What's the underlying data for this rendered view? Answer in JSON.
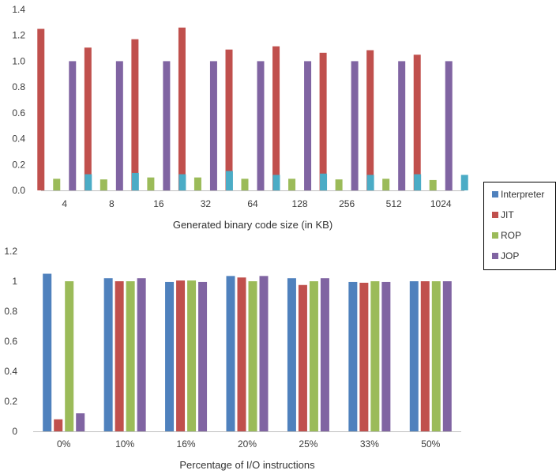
{
  "colors": {
    "Interpreter": "#4f81bd",
    "JIT": "#c0504d",
    "ROP": "#9bbb59",
    "JOP": "#8064a2",
    "extra": "#4bacc6"
  },
  "legend": {
    "placement": "right",
    "items": [
      {
        "label": "Interpreter",
        "color": "#4f81bd"
      },
      {
        "label": "JIT",
        "color": "#c0504d"
      },
      {
        "label": "ROP",
        "color": "#9bbb59"
      },
      {
        "label": "JOP",
        "color": "#8064a2"
      }
    ]
  },
  "chart_data": [
    {
      "type": "bar",
      "title": "",
      "xlabel": "Generated binary code size (in KB)",
      "ylabel": "",
      "categories": [
        "4",
        "8",
        "16",
        "32",
        "64",
        "128",
        "256",
        "512",
        "1024"
      ],
      "ylim": [
        0,
        1.4
      ],
      "yticks": [
        0,
        0.2,
        0.4,
        0.6,
        0.8,
        1.0,
        1.2,
        1.4
      ],
      "ytick_labels": [
        "0.0",
        "0.2",
        "0.4",
        "0.6",
        "0.8",
        "1.0",
        "1.2",
        "1.4"
      ],
      "grid": false,
      "series": [
        {
          "name": "JIT",
          "color": "#c0504d",
          "values": [
            1.25,
            1.105,
            1.17,
            1.26,
            1.09,
            1.115,
            1.065,
            1.085,
            1.05
          ]
        },
        {
          "color": "#9bbb59",
          "values": [
            0.09,
            0.085,
            0.1,
            0.1,
            0.09,
            0.09,
            0.085,
            0.09,
            0.08
          ]
        },
        {
          "name": "JOP",
          "color": "#8064a2",
          "values": [
            1.0,
            1.0,
            1.0,
            1.0,
            1.0,
            1.0,
            1.0,
            1.0,
            1.0
          ]
        },
        {
          "color": "#4bacc6",
          "values": [
            0.125,
            0.135,
            0.125,
            0.15,
            0.12,
            0.13,
            0.12,
            0.125,
            0.12
          ]
        }
      ]
    },
    {
      "type": "bar",
      "title": "",
      "xlabel": "Percentage of I/O instructions",
      "ylabel": "",
      "categories": [
        "0%",
        "10%",
        "16%",
        "20%",
        "25%",
        "33%",
        "50%"
      ],
      "ylim": [
        0,
        1.2
      ],
      "yticks": [
        0,
        0.2,
        0.4,
        0.6,
        0.8,
        1.0,
        1.2
      ],
      "ytick_labels": [
        "0",
        "0.2",
        "0.4",
        "0.6",
        "0.8",
        "1",
        "1.2"
      ],
      "grid": false,
      "series": [
        {
          "name": "Interpreter",
          "color": "#4f81bd",
          "values": [
            1.05,
            1.02,
            0.995,
            1.035,
            1.02,
            0.995,
            1.0
          ]
        },
        {
          "name": "JIT",
          "color": "#c0504d",
          "values": [
            0.08,
            1.0,
            1.005,
            1.025,
            0.975,
            0.99,
            1.0
          ]
        },
        {
          "name": "ROP",
          "color": "#9bbb59",
          "values": [
            1.0,
            1.0,
            1.005,
            1.0,
            1.0,
            1.0,
            1.0
          ]
        },
        {
          "name": "JOP",
          "color": "#8064a2",
          "values": [
            0.12,
            1.02,
            0.995,
            1.035,
            1.02,
            0.995,
            1.0
          ]
        }
      ]
    }
  ]
}
